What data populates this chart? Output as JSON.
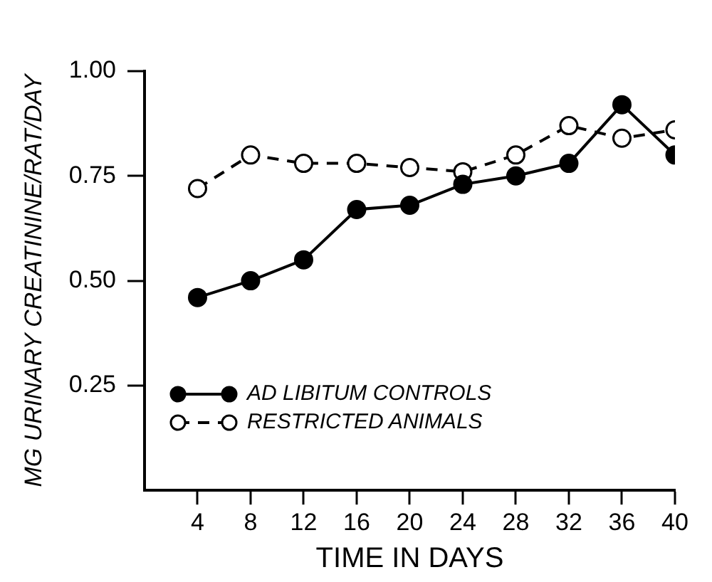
{
  "chart_data": {
    "type": "line",
    "xlabel": "TIME IN DAYS",
    "ylabel": "MG URINARY CREATININE/RAT/DAY",
    "x": [
      4,
      8,
      12,
      16,
      20,
      24,
      28,
      32,
      36,
      40
    ],
    "series": [
      {
        "name": "AD LIBITUM CONTROLS",
        "color": "#000000",
        "line_style": "solid",
        "values": [
          0.46,
          0.5,
          0.55,
          0.67,
          0.68,
          0.73,
          0.75,
          0.78,
          0.92,
          0.8
        ]
      },
      {
        "name": "RESTRICTED ANIMALS",
        "color": "#000000",
        "line_style": "dashed",
        "values": [
          0.72,
          0.8,
          0.78,
          0.78,
          0.77,
          0.76,
          0.8,
          0.87,
          0.84,
          0.86
        ]
      }
    ],
    "xlim": [
      0,
      40
    ],
    "xticks": [
      4,
      8,
      12,
      16,
      20,
      24,
      28,
      32,
      36,
      40
    ],
    "ylim": [
      0,
      1.0
    ],
    "yticks": [
      {
        "value": 0.25,
        "label": "0.25"
      },
      {
        "value": 0.5,
        "label": "0.50"
      },
      {
        "value": 0.75,
        "label": "0.75"
      },
      {
        "value": 1.0,
        "label": "1.00"
      }
    ],
    "grid": false,
    "legend": "bottom left",
    "marker": "circle"
  }
}
